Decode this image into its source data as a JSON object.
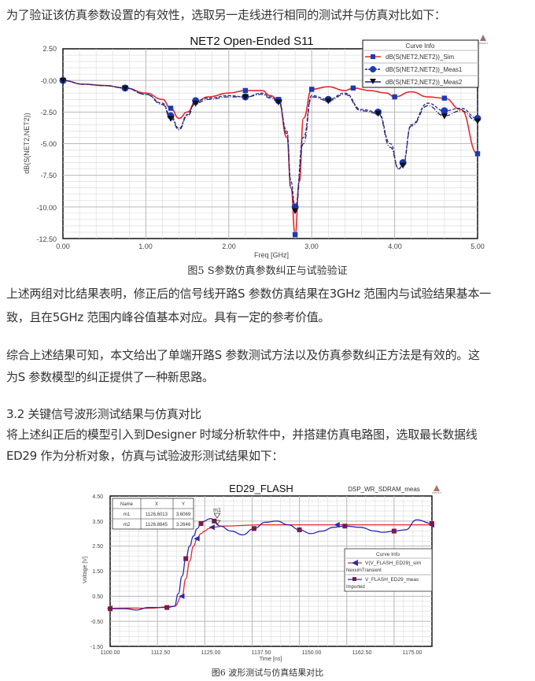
{
  "article": {
    "intro": "为了验证该仿真参数设置的有效性，选取另一走线进行相同的测试并与仿真对比如下：",
    "figure5_caption": "图5 S参数仿真参数纠正与试验验证",
    "para1_line1": "上述两组对比结果表明，修正后的信号线开路S 参数仿真结果在3GHz 范围内与试验结果基本一",
    "para1_line2": "致，且在5GHz 范围内峰谷值基本对应。具有一定的参考价值。",
    "para2_line1": "综合上述结果可知，本文给出了单端开路S 参数测试方法以及仿真参数纠正方法是有效的。这",
    "para2_line2": "为S 参数模型的纠正提供了一种新思路。",
    "section_heading": "3.2 关键信号波形测试结果与仿真对比",
    "para3_line1": "将上述纠正后的模型引入到Designer 时域分析软件中，并搭建仿真电路图，选取最长数据线",
    "para3_line2": "ED29 作为分析对象，仿真与试验波形测试结果如下：",
    "figure6_caption": "图6 波形测试与仿真结果对比"
  },
  "chart_data": [
    {
      "type": "line",
      "title": "NET2 Open-Ended S11",
      "xlabel": "Freq [GHz]",
      "ylabel": "dB(S(NET2,NET2))",
      "xlim": [
        0,
        5
      ],
      "ylim": [
        -12.5,
        2.5
      ],
      "xticks": [
        "0.00",
        "1.00",
        "2.00",
        "3.00",
        "4.00",
        "5.00"
      ],
      "yticks": [
        "2.50",
        "-0.00",
        "-2.50",
        "-5.00",
        "-7.50",
        "-10.00",
        "-12.50"
      ],
      "grid": true,
      "legend_title": "Curve Info",
      "legend_position": "top-right",
      "series": [
        {
          "name": "dB(S(NET2,NET2))_Sim",
          "color": "#e8282b",
          "marker": "square",
          "x": [
            0,
            0.25,
            0.5,
            0.75,
            1.0,
            1.2,
            1.3,
            1.4,
            1.5,
            1.6,
            1.75,
            2.0,
            2.2,
            2.4,
            2.5,
            2.6,
            2.7,
            2.75,
            2.8,
            2.85,
            2.9,
            3.0,
            3.2,
            3.4,
            3.5,
            3.7,
            3.9,
            4.0,
            4.2,
            4.4,
            4.6,
            4.8,
            5.0
          ],
          "y": [
            0,
            -0.3,
            -0.4,
            -0.6,
            -1.0,
            -1.5,
            -2.2,
            -3.0,
            -2.5,
            -1.7,
            -1.3,
            -1.0,
            -0.8,
            -0.8,
            -1.2,
            -1.5,
            -4.5,
            -8.5,
            -12.2,
            -8.0,
            -3.0,
            -0.7,
            -0.5,
            -0.8,
            -0.6,
            -0.8,
            -1.0,
            -1.3,
            -0.9,
            -1.3,
            -1.4,
            -2.3,
            -5.8
          ]
        },
        {
          "name": "dB(S(NET2,NET2))_Meas1",
          "color": "#1a1aa8",
          "marker": "circle",
          "x": [
            0,
            0.25,
            0.5,
            0.75,
            1.0,
            1.2,
            1.3,
            1.4,
            1.5,
            1.6,
            1.75,
            2.0,
            2.2,
            2.4,
            2.5,
            2.6,
            2.7,
            2.75,
            2.8,
            2.9,
            3.0,
            3.2,
            3.4,
            3.6,
            3.8,
            3.95,
            4.05,
            4.1,
            4.2,
            4.4,
            4.6,
            4.8,
            5.0
          ],
          "y": [
            0,
            -0.3,
            -0.4,
            -0.6,
            -1.1,
            -1.8,
            -2.8,
            -3.8,
            -2.7,
            -1.6,
            -1.4,
            -1.2,
            -1.3,
            -1.0,
            -1.3,
            -1.6,
            -4.0,
            -8.0,
            -10.0,
            -4.5,
            -1.2,
            -1.5,
            -1.0,
            -2.3,
            -2.5,
            -5.0,
            -7.0,
            -6.5,
            -3.5,
            -1.8,
            -2.4,
            -2.2,
            -3.0
          ]
        },
        {
          "name": "dB(S(NET2,NET2))_Meas2",
          "color": "#111111",
          "marker": "triangle-down",
          "x": [
            0,
            0.25,
            0.5,
            0.75,
            1.0,
            1.2,
            1.3,
            1.4,
            1.5,
            1.6,
            1.75,
            2.0,
            2.2,
            2.4,
            2.5,
            2.6,
            2.7,
            2.75,
            2.8,
            2.9,
            3.0,
            3.2,
            3.4,
            3.6,
            3.8,
            3.95,
            4.05,
            4.1,
            4.2,
            4.4,
            4.6,
            4.8,
            5.0
          ],
          "y": [
            0,
            -0.3,
            -0.4,
            -0.6,
            -1.1,
            -1.9,
            -3.0,
            -3.9,
            -2.8,
            -1.8,
            -1.5,
            -1.3,
            -1.3,
            -1.1,
            -1.4,
            -1.7,
            -4.2,
            -8.5,
            -10.3,
            -5.0,
            -1.3,
            -1.6,
            -1.1,
            -2.4,
            -2.6,
            -5.3,
            -7.0,
            -6.7,
            -3.6,
            -2.0,
            -2.8,
            -2.4,
            -3.2
          ]
        }
      ]
    },
    {
      "type": "line",
      "title": "ED29_FLASH",
      "subtitle": "DSP_WR_SDRAM_meas",
      "xlabel": "Time [ns]",
      "ylabel": "Voltage [V]",
      "xlim": [
        1100,
        1185
      ],
      "ylim": [
        -1.5,
        4.5
      ],
      "xticks": [
        "1100.00",
        "1112.50",
        "1125.00",
        "1137.50",
        "1150.00",
        "1162.50",
        "1175.00"
      ],
      "yticks": [
        "4.50",
        "3.50",
        "2.50",
        "1.50",
        "0.50",
        "-0.50",
        "-1.50"
      ],
      "grid": true,
      "legend_title": "Curve Info",
      "legend_position": "right-middle",
      "series": [
        {
          "name": "V(V_FLASH_ED29)_sim",
          "sublabel": "NexximTransient",
          "color": "#e8282b",
          "marker": "triangle-left",
          "x": [
            1100,
            1105,
            1110,
            1117,
            1119,
            1120,
            1121,
            1122,
            1123,
            1124,
            1125,
            1126,
            1127,
            1130,
            1140,
            1150,
            1160,
            1170,
            1185
          ],
          "y": [
            0.02,
            0.03,
            0.02,
            0.1,
            0.5,
            1.2,
            1.9,
            2.5,
            2.8,
            3.0,
            3.1,
            3.2,
            3.25,
            3.3,
            3.35,
            3.35,
            3.35,
            3.35,
            3.35
          ]
        },
        {
          "name": "V_FLASH_ED29_meas",
          "sublabel": "Imported",
          "color": "#2a2ab0",
          "marker": "square",
          "x": [
            1100,
            1104,
            1107,
            1110,
            1115,
            1117,
            1118,
            1119,
            1120,
            1121,
            1122,
            1123,
            1124,
            1125,
            1126,
            1126.6,
            1127.5,
            1129,
            1132,
            1135,
            1138,
            1141,
            1144,
            1147,
            1150,
            1153,
            1156,
            1159,
            1162,
            1166,
            1170,
            1172,
            1175,
            1178,
            1181,
            1185
          ],
          "y": [
            0.0,
            0.0,
            -0.05,
            0.05,
            0.05,
            0.1,
            0.6,
            1.3,
            2.0,
            2.5,
            2.9,
            3.2,
            3.4,
            3.5,
            3.58,
            3.6,
            3.5,
            3.3,
            3.1,
            2.95,
            3.2,
            3.45,
            3.5,
            3.35,
            3.15,
            3.0,
            3.1,
            3.25,
            3.3,
            3.25,
            3.1,
            3.05,
            3.1,
            3.15,
            3.55,
            3.4
          ]
        }
      ],
      "markers_table": {
        "headers": [
          "Name",
          "X",
          "Y"
        ],
        "rows": [
          [
            "m1",
            "1126.6013",
            "3.6069"
          ],
          [
            "m2",
            "1126.8845",
            "3.2646"
          ]
        ]
      }
    }
  ],
  "figure5": {
    "title": "NET2 Open-Ended S11",
    "legend_title": "Curve Info",
    "legend_items": [
      "dB(S(NET2,NET2))_Sim",
      "dB(S(NET2,NET2))_Meas1",
      "dB(S(NET2,NET2))_Meas2"
    ],
    "xlabel": "Freq [GHz]",
    "ylabel": "dB(S(NET2,NET2))",
    "xticks": [
      "0.00",
      "1.00",
      "2.00",
      "3.00",
      "4.00",
      "5.00"
    ],
    "yticks": [
      "2.50",
      "-0.00",
      "-2.50",
      "-5.00",
      "-7.50",
      "-10.00",
      "-12.50"
    ],
    "logo_text": "ANSOFT"
  },
  "figure6": {
    "title": "ED29_FLASH",
    "subtitle": "DSP_WR_SDRAM_meas",
    "legend_title": "Curve Info",
    "legend_items": [
      {
        "label": "V(V_FLASH_ED29)_sim",
        "sub": "NexximTransient"
      },
      {
        "label": "V_FLASH_ED29_meas",
        "sub": "Imported"
      }
    ],
    "xlabel": "Time [ns]",
    "ylabel": "Voltage [V]",
    "xticks": [
      "1100.00",
      "1112.50",
      "1125.00",
      "1137.50",
      "1150.00",
      "1162.50",
      "1175.00"
    ],
    "yticks": [
      "4.50",
      "3.50",
      "2.50",
      "1.50",
      "0.50",
      "-0.50",
      "-1.50"
    ],
    "table_headers": [
      "Name",
      "X",
      "Y"
    ],
    "table_rows": [
      [
        "m1",
        "1126.6013",
        "3.6069"
      ],
      [
        "m2",
        "1126.8845",
        "3.2646"
      ]
    ],
    "marker_label": "m1",
    "logo_text": "ANSOFT"
  },
  "colors": {
    "sim_red": "#e8282b",
    "meas_blue": "#1a1aa8",
    "meas_black": "#111111",
    "grid": "#cfcfcf",
    "text": "#333333"
  }
}
